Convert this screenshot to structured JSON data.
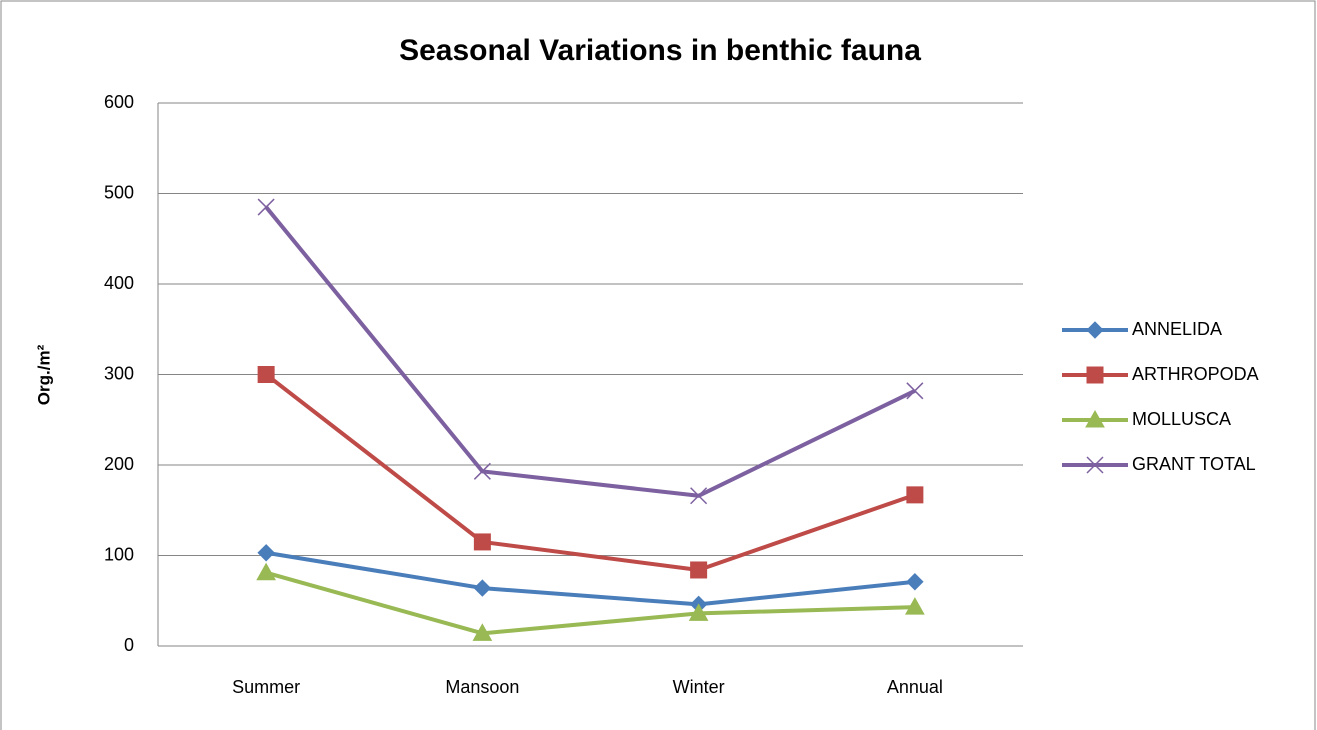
{
  "chart_data": {
    "type": "line",
    "title": "Seasonal  Variations  in  benthic fauna",
    "y_label": "Org./m²",
    "categories": [
      "Summer",
      "Mansoon",
      "Winter",
      "Annual"
    ],
    "series": [
      {
        "name": "ANNELIDA",
        "color": "#4a7ebb",
        "marker": "diamond",
        "values": [
          103,
          64,
          46,
          71
        ]
      },
      {
        "name": "ARTHROPODA",
        "color": "#be4b48",
        "marker": "square",
        "values": [
          300,
          115,
          84,
          167
        ]
      },
      {
        "name": "MOLLUSCA",
        "color": "#98b954",
        "marker": "triangle",
        "values": [
          81,
          14,
          36,
          43
        ]
      },
      {
        "name": "GRANT  TOTAL",
        "color": "#7d60a0",
        "marker": "x",
        "values": [
          485,
          193,
          166,
          282
        ]
      }
    ],
    "ylim": [
      0,
      600
    ],
    "yticks": [
      0,
      100,
      200,
      300,
      400,
      500,
      600
    ],
    "grid": true,
    "legend": "right"
  }
}
